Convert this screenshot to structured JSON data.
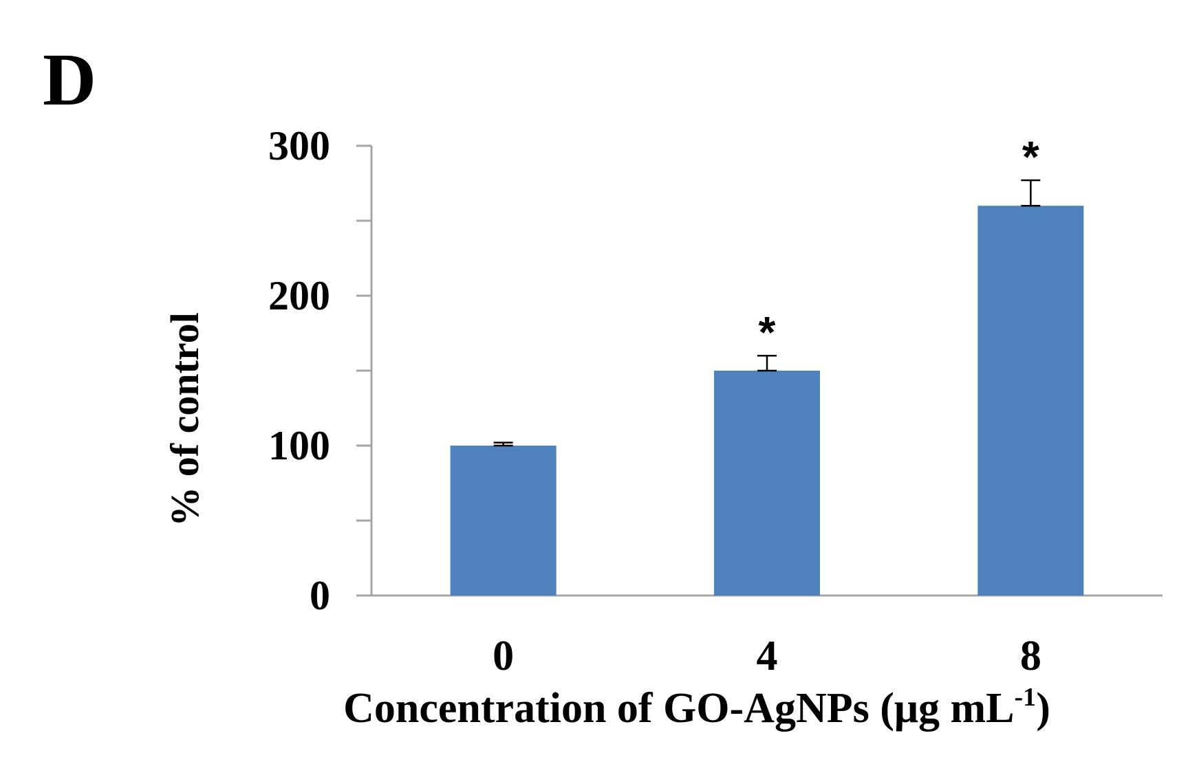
{
  "panel_label": "D",
  "colors": {
    "bar": "#4F81BD",
    "axis": "#A6A6A6",
    "text": "#000000"
  },
  "chart_data": {
    "type": "bar",
    "categories": [
      "0",
      "4",
      "8"
    ],
    "values": [
      100,
      150,
      260
    ],
    "errors": [
      2,
      10,
      17
    ],
    "annotations": [
      "",
      "*",
      "*"
    ],
    "xlabel": "Concentration of GO-AgNPs (μg mL",
    "xlabel_sup": "-1",
    "xlabel_end": ")",
    "ylabel": "% of control",
    "ylim": [
      0,
      300
    ],
    "yticks": [
      0,
      100,
      200,
      300
    ],
    "minor_yticks": [
      50,
      150,
      250
    ],
    "grid": false,
    "legend": "none"
  }
}
